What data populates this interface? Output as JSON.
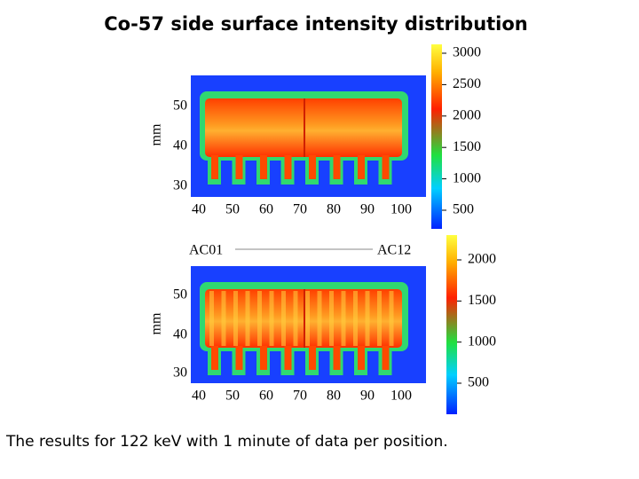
{
  "title": "Co-57 side surface intensity distribution",
  "panels": [
    {
      "y_label": "mm",
      "x_ticks": [
        40,
        50,
        60,
        70,
        80,
        90,
        100
      ],
      "y_ticks": [
        50,
        40,
        30
      ],
      "colorbar_ticks": [
        3000,
        2500,
        2000,
        1500,
        1000,
        500
      ]
    },
    {
      "y_label": "mm",
      "x_ticks": [
        40,
        50,
        60,
        70,
        80,
        90,
        100
      ],
      "y_ticks": [
        50,
        40,
        30
      ],
      "colorbar_ticks": [
        2000,
        1500,
        1000,
        500
      ]
    }
  ],
  "labels": {
    "left": "AC01",
    "right": "AC12"
  },
  "caption": "The results for 122 keV with 1 minute of data per position."
}
